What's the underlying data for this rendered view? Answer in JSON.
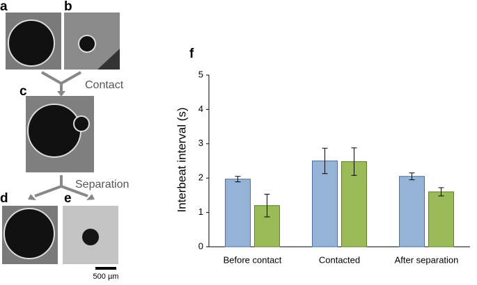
{
  "panels": {
    "a": "a",
    "b": "b",
    "c": "c",
    "d": "d",
    "e": "e",
    "f": "f",
    "contact": "Contact",
    "separation": "Separation",
    "scale_bar": "500 µm"
  },
  "chart_data": {
    "type": "bar",
    "ylabel": "Interbeat interval (s)",
    "categories": [
      "Before contact",
      "Contacted",
      "After separation"
    ],
    "series": [
      {
        "color": "#95b3d7",
        "values": [
          1.97,
          2.5,
          2.05
        ],
        "errors": [
          0.08,
          0.37,
          0.1
        ]
      },
      {
        "color": "#9bbb59",
        "values": [
          1.2,
          2.48,
          1.6
        ],
        "errors": [
          0.33,
          0.4,
          0.12
        ]
      }
    ],
    "ylim": [
      0,
      5
    ],
    "yticks": [
      0,
      1,
      2,
      3,
      4,
      5
    ]
  }
}
